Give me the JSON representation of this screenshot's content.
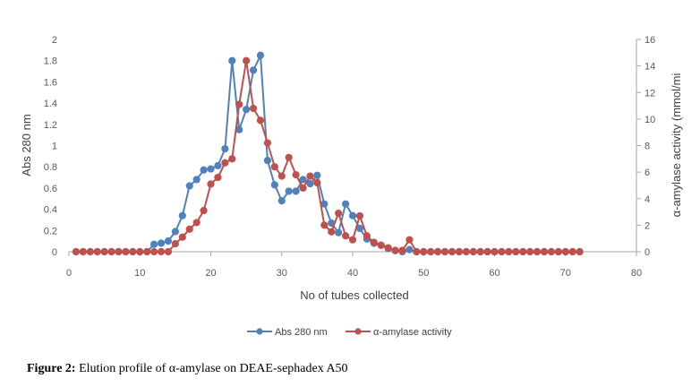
{
  "figure": {
    "caption_label": "Figure 2:",
    "caption_text": " Elution profile of α-amylase on DEAE-sephadex A50"
  },
  "chart_data": {
    "type": "line",
    "xlabel": "No of tubes collected",
    "ylabel": "Abs 280 nm",
    "y2label": "α-amylase activity (mmol/mi",
    "xlim": [
      0,
      80
    ],
    "ylim": [
      0,
      2
    ],
    "y2lim": [
      0,
      16
    ],
    "x_ticks": [
      0,
      10,
      20,
      30,
      40,
      50,
      60,
      70,
      80
    ],
    "y_ticks": [
      "0",
      "0.2",
      "0.4",
      "0.6",
      "0.8",
      "1",
      "1.2",
      "1.4",
      "1.6",
      "1.8",
      "2"
    ],
    "y2_ticks": [
      "0",
      "2",
      "4",
      "6",
      "8",
      "10",
      "12",
      "14",
      "16"
    ],
    "grid": false,
    "legend_position": "bottom",
    "series": [
      {
        "name": "Abs 280 nm",
        "axis": "left",
        "color": "#4f81bd",
        "x": [
          1,
          2,
          3,
          4,
          5,
          6,
          7,
          8,
          9,
          10,
          11,
          12,
          13,
          14,
          15,
          16,
          17,
          18,
          19,
          20,
          21,
          22,
          23,
          24,
          25,
          26,
          27,
          28,
          29,
          30,
          31,
          32,
          33,
          34,
          35,
          36,
          37,
          38,
          39,
          40,
          41,
          42,
          43,
          44,
          45,
          46,
          47,
          48,
          49,
          50,
          51,
          52,
          53,
          54,
          55,
          56,
          57,
          58,
          59,
          60,
          61,
          62,
          63,
          64,
          65,
          66,
          67,
          68,
          69,
          70,
          71,
          72
        ],
        "y": [
          0,
          0,
          0,
          0,
          0,
          0,
          0,
          0,
          0,
          0,
          0,
          0.07,
          0.08,
          0.1,
          0.19,
          0.34,
          0.62,
          0.68,
          0.77,
          0.78,
          0.81,
          0.97,
          1.8,
          1.15,
          1.34,
          1.71,
          1.85,
          0.86,
          0.63,
          0.48,
          0.57,
          0.57,
          0.68,
          0.64,
          0.72,
          0.45,
          0.27,
          0.18,
          0.45,
          0.34,
          0.22,
          0.12,
          0.08,
          0.06,
          0.03,
          0.01,
          0,
          0.02,
          0,
          0,
          0,
          0,
          0,
          0,
          0,
          0,
          0,
          0,
          0,
          0,
          0,
          0,
          0,
          0,
          0,
          0,
          0,
          0,
          0,
          0,
          0,
          0
        ]
      },
      {
        "name": "α-amylase activity",
        "axis": "right",
        "color": "#c0504d",
        "x": [
          1,
          2,
          3,
          4,
          5,
          6,
          7,
          8,
          9,
          10,
          11,
          12,
          13,
          14,
          15,
          16,
          17,
          18,
          19,
          20,
          21,
          22,
          23,
          24,
          25,
          26,
          27,
          28,
          29,
          30,
          31,
          32,
          33,
          34,
          35,
          36,
          37,
          38,
          39,
          40,
          41,
          42,
          43,
          44,
          45,
          46,
          47,
          48,
          49,
          50,
          51,
          52,
          53,
          54,
          55,
          56,
          57,
          58,
          59,
          60,
          61,
          62,
          63,
          64,
          65,
          66,
          67,
          68,
          69,
          70,
          71,
          72
        ],
        "y": [
          0,
          0,
          0,
          0,
          0,
          0,
          0,
          0,
          0,
          0,
          0,
          0,
          0,
          0,
          0.6,
          1.1,
          1.7,
          2.2,
          3.1,
          5.1,
          5.6,
          6.7,
          7,
          11.1,
          14.4,
          10.8,
          9.9,
          8.2,
          6.4,
          5.7,
          7.1,
          5.8,
          4.8,
          5.7,
          5.2,
          2,
          1.5,
          2.9,
          1.2,
          0.9,
          2.7,
          1.2,
          0.7,
          0.5,
          0.3,
          0.1,
          0.1,
          0.9,
          0,
          0,
          0,
          0,
          0,
          0,
          0,
          0,
          0,
          0,
          0,
          0,
          0,
          0,
          0,
          0,
          0,
          0,
          0,
          0,
          0,
          0,
          0,
          0
        ]
      }
    ]
  }
}
